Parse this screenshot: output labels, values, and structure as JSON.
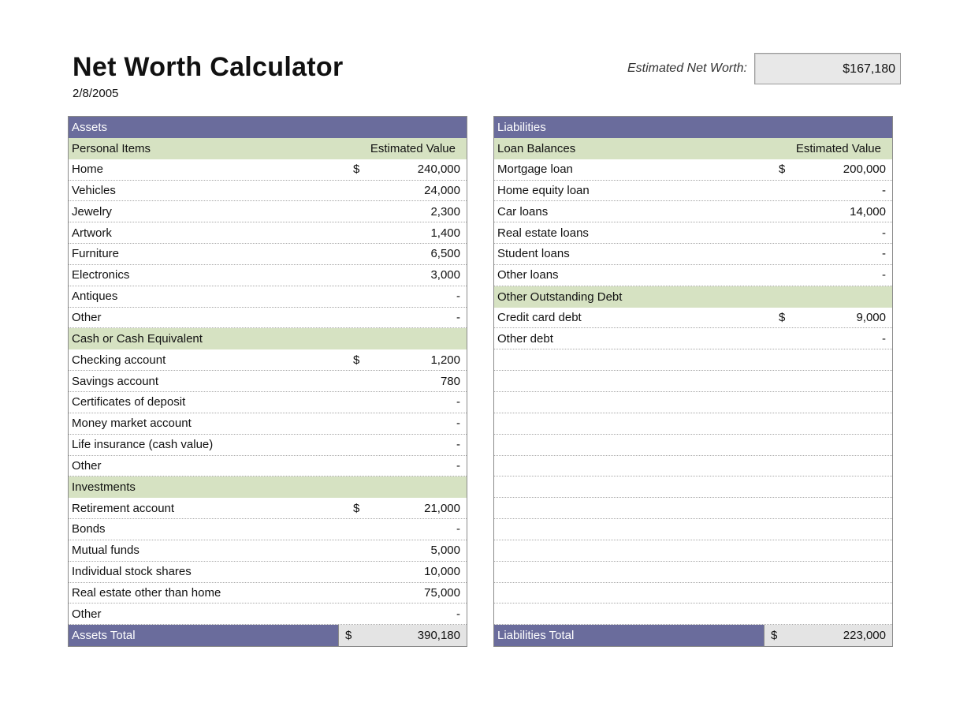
{
  "header": {
    "title": "Net Worth Calculator",
    "date": "2/8/2005",
    "net_worth_label": "Estimated Net Worth:",
    "net_worth_value": "$167,180"
  },
  "assets": {
    "header": "Assets",
    "value_column": "Estimated Value",
    "sections": [
      {
        "name": "Personal Items",
        "items": [
          {
            "label": "Home",
            "currency": "$",
            "value": "240,000"
          },
          {
            "label": "Vehicles",
            "currency": "",
            "value": "24,000"
          },
          {
            "label": "Jewelry",
            "currency": "",
            "value": "2,300"
          },
          {
            "label": "Artwork",
            "currency": "",
            "value": "1,400"
          },
          {
            "label": "Furniture",
            "currency": "",
            "value": "6,500"
          },
          {
            "label": "Electronics",
            "currency": "",
            "value": "3,000"
          },
          {
            "label": "Antiques",
            "currency": "",
            "value": "-"
          },
          {
            "label": "Other",
            "currency": "",
            "value": "-"
          }
        ]
      },
      {
        "name": "Cash or Cash Equivalent",
        "items": [
          {
            "label": "Checking account",
            "currency": "$",
            "value": "1,200"
          },
          {
            "label": "Savings account",
            "currency": "",
            "value": "780"
          },
          {
            "label": "Certificates of deposit",
            "currency": "",
            "value": "-"
          },
          {
            "label": "Money market account",
            "currency": "",
            "value": "-"
          },
          {
            "label": "Life insurance (cash value)",
            "currency": "",
            "value": "-"
          },
          {
            "label": "Other",
            "currency": "",
            "value": "-"
          }
        ]
      },
      {
        "name": "Investments",
        "items": [
          {
            "label": "Retirement account",
            "currency": "$",
            "value": "21,000"
          },
          {
            "label": "Bonds",
            "currency": "",
            "value": "-"
          },
          {
            "label": "Mutual funds",
            "currency": "",
            "value": "5,000"
          },
          {
            "label": "Individual stock shares",
            "currency": "",
            "value": "10,000"
          },
          {
            "label": "Real estate other than home",
            "currency": "",
            "value": "75,000"
          },
          {
            "label": "Other",
            "currency": "",
            "value": "-"
          }
        ]
      }
    ],
    "total_label": "Assets Total",
    "total_currency": "$",
    "total_value": "390,180"
  },
  "liabilities": {
    "header": "Liabilities",
    "value_column": "Estimated Value",
    "sections": [
      {
        "name": "Loan Balances",
        "items": [
          {
            "label": "Mortgage loan",
            "currency": "$",
            "value": "200,000"
          },
          {
            "label": "Home equity loan",
            "currency": "",
            "value": "-"
          },
          {
            "label": "Car loans",
            "currency": "",
            "value": "14,000"
          },
          {
            "label": "Real estate loans",
            "currency": "",
            "value": "-"
          },
          {
            "label": "Student loans",
            "currency": "",
            "value": "-"
          },
          {
            "label": "Other loans",
            "currency": "",
            "value": "-"
          }
        ]
      },
      {
        "name": "Other Outstanding Debt",
        "items": [
          {
            "label": "Credit card debt",
            "currency": "$",
            "value": "9,000"
          },
          {
            "label": "Other debt",
            "currency": "",
            "value": "-"
          }
        ]
      }
    ],
    "total_label": "Liabilities Total",
    "total_currency": "$",
    "total_value": "223,000"
  }
}
